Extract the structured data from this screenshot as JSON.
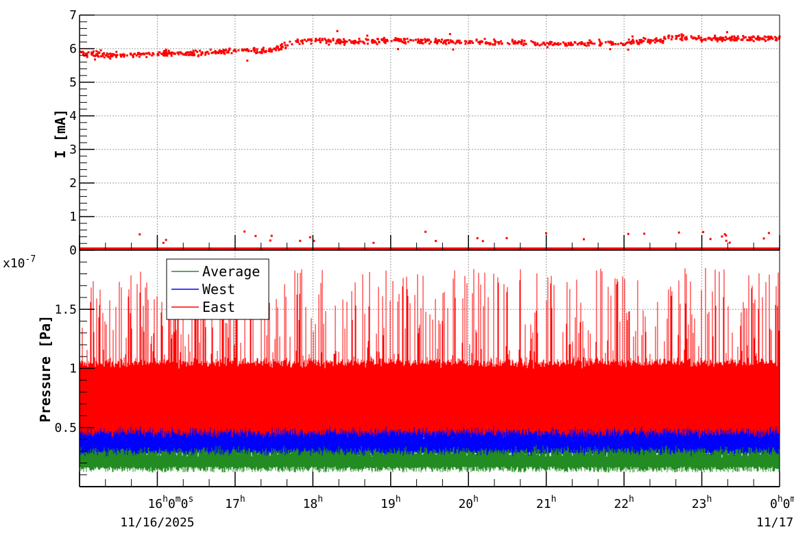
{
  "chart_data": [
    {
      "type": "scatter",
      "ylabel": "I [mA]",
      "ylim": [
        0,
        7
      ],
      "yticks": [
        "0",
        "1",
        "2",
        "3",
        "4",
        "5",
        "6",
        "7"
      ],
      "xlim": [
        "11/16/2025 15:00",
        "11/17/2025 00:00"
      ],
      "grid": true,
      "color": "#ff0000",
      "series": [
        {
          "x_hours": [
            15.0,
            15.5,
            16.0,
            16.5,
            17.0,
            17.5,
            17.75,
            18.0,
            18.5,
            19.0,
            19.5,
            20.0,
            20.5,
            21.0,
            21.5,
            22.0,
            22.5,
            22.6,
            23.0,
            23.5,
            24.0
          ],
          "y": [
            5.85,
            5.8,
            5.85,
            5.85,
            5.95,
            5.95,
            6.2,
            6.25,
            6.2,
            6.25,
            6.22,
            6.2,
            6.18,
            6.15,
            6.15,
            6.18,
            6.25,
            6.35,
            6.3,
            6.3,
            6.32
          ],
          "spread": 0.12
        },
        {
          "x_hours": [
            15.0,
            24.0
          ],
          "y": [
            0.02,
            0.02
          ],
          "outliers_y": [
            0.2,
            0.6
          ]
        }
      ]
    },
    {
      "type": "line",
      "ylabel": "Pressure [Pa]",
      "yscale_label": "x10",
      "yscale_exp": "-7",
      "ylim": [
        0,
        2.0
      ],
      "yticks": [
        "0.5",
        "1",
        "1.5"
      ],
      "xlim": [
        "11/16/2025 15:00",
        "11/17/2025 00:00"
      ],
      "xticks": [
        {
          "h": "16",
          "rest": [
            [
              "0",
              "m"
            ],
            [
              "0",
              "s"
            ]
          ],
          "date": "11/16/2025"
        },
        {
          "h": "17"
        },
        {
          "h": "18"
        },
        {
          "h": "19"
        },
        {
          "h": "20"
        },
        {
          "h": "21"
        },
        {
          "h": "22"
        },
        {
          "h": "23"
        },
        {
          "h": "0",
          "rest": [
            [
              "0",
              "m"
            ],
            [
              "0",
              "s"
            ]
          ],
          "date": "11/17/2025"
        }
      ],
      "grid": true,
      "legend_position": "top-left",
      "series": [
        {
          "name": "Average",
          "color": "#228b22",
          "low": 0.15,
          "high": 0.3
        },
        {
          "name": "West",
          "color": "#0000ff",
          "low": 0.27,
          "high": 0.46
        },
        {
          "name": "East",
          "color": "#ff0000",
          "low": 0.4,
          "high": 1.05,
          "spike_max": 1.85
        }
      ]
    }
  ]
}
